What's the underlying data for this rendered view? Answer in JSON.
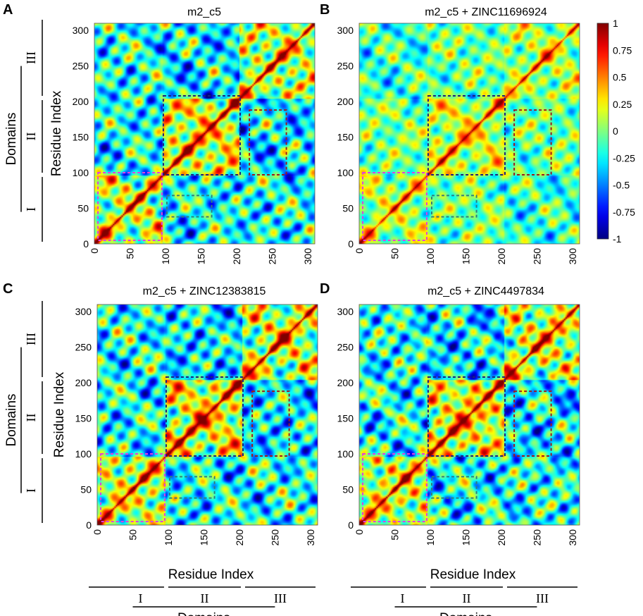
{
  "chart_data": {
    "type": "heatmap",
    "description_axes": {
      "xlabel": "Residue Index",
      "ylabel": "Residue Index"
    },
    "panels": [
      {
        "letter": "A",
        "title": "m2_c5",
        "variant": 0
      },
      {
        "letter": "B",
        "title": "m2_c5 + ZINC11696924",
        "variant": 1
      },
      {
        "letter": "C",
        "title": "m2_c5 + ZINC12383815",
        "variant": 2
      },
      {
        "letter": "D",
        "title": "m2_c5 + ZINC4497834",
        "variant": 3
      }
    ],
    "x_range": [
      0,
      310
    ],
    "y_range": [
      0,
      310
    ],
    "x_ticks": [
      0,
      50,
      100,
      150,
      200,
      250,
      300
    ],
    "y_ticks": [
      0,
      50,
      100,
      150,
      200,
      250,
      300
    ],
    "x_tick_labels": [
      "0",
      "50",
      "100",
      "150",
      "200",
      "250",
      "300"
    ],
    "y_tick_labels": [
      "0",
      "50",
      "100",
      "150",
      "200",
      "250",
      "300"
    ],
    "domains": [
      {
        "name": "I",
        "start": 0,
        "end": 97
      },
      {
        "name": "II",
        "start": 97,
        "end": 205
      },
      {
        "name": "III",
        "start": 205,
        "end": 310
      }
    ],
    "domains_label": "Domains",
    "highlight_boxes": [
      {
        "name": "domain-I",
        "x": [
          5,
          95
        ],
        "y": [
          5,
          100
        ],
        "color": "#e040e0"
      },
      {
        "name": "domain-II",
        "x": [
          97,
          205
        ],
        "y": [
          97,
          208
        ],
        "color": "#1a237e"
      },
      {
        "name": "I-II-contact",
        "x": [
          102,
          165
        ],
        "y": [
          38,
          68
        ],
        "color": "#2f7f7f"
      },
      {
        "name": "II-III-contact",
        "x": [
          218,
          270
        ],
        "y": [
          97,
          188
        ],
        "color": "#9b1c1c"
      }
    ],
    "colorbar": {
      "range": [
        -1,
        1
      ],
      "ticks": [
        1,
        0.75,
        0.5,
        0.25,
        0,
        -0.25,
        -0.5,
        -0.75,
        -1
      ],
      "tick_labels": [
        "1",
        "0.75",
        "0.5",
        "0.25",
        "0",
        "-0.25",
        "-0.5",
        "-0.75",
        "-1"
      ],
      "colormap": "jet"
    }
  },
  "colors": {
    "domain_I_box": "#e040e0",
    "domain_II_box": "#1a237e",
    "contact_box": "#2f7f7f",
    "domain_III_box": "#9b1c1c"
  }
}
